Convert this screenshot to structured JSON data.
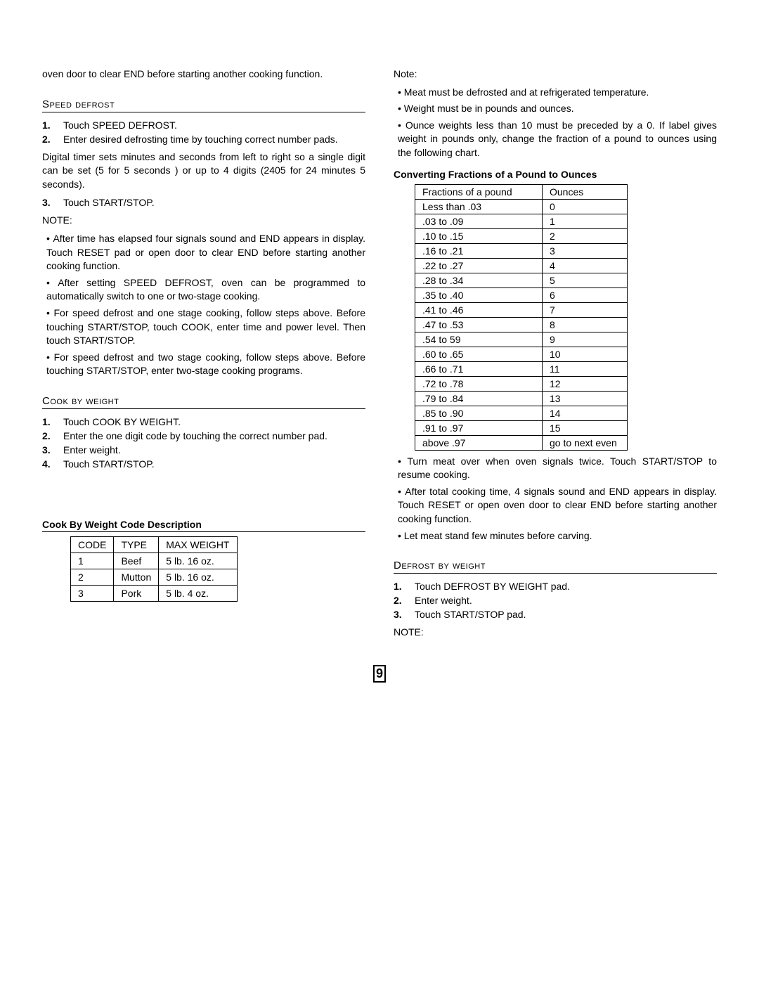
{
  "left": {
    "intro": "oven door to clear END before starting another cooking function.",
    "speed_defrost_title": "Speed defrost",
    "sd_steps": [
      "Touch SPEED DEFROST.",
      "Enter desired defrosting time by touching correct number pads.",
      "Touch START/STOP."
    ],
    "sd_mid": "Digital timer sets minutes and seconds from left to right so a single digit can be set (5 for 5 seconds ) or up to 4 digits (2405 for 24 minutes 5 seconds).",
    "note_label": "NOTE:",
    "sd_notes": [
      "After time has elapsed four signals sound and END appears in display. Touch RESET pad or open door to clear END before starting another cooking function.",
      "After setting SPEED DEFROST, oven can be programmed to automatically switch to one or two-stage cooking.",
      "For speed defrost and one stage cooking, follow steps above. Before touching START/STOP, touch COOK, enter time and power level. Then touch START/STOP.",
      "For speed defrost and two stage cooking, follow steps above. Before touching START/STOP, enter two-stage cooking programs."
    ],
    "cbw_title": "Cook by weight",
    "cbw_steps": [
      "Touch COOK BY WEIGHT.",
      "Enter the one digit code by touching the correct number pad.",
      "Enter weight.",
      "Touch START/STOP."
    ],
    "cbw_code_title": "Cook By Weight Code Description",
    "cbw_headers": [
      "CODE",
      "TYPE",
      "MAX WEIGHT"
    ],
    "cbw_rows": [
      [
        "1",
        "Beef",
        "5 lb. 16 oz."
      ],
      [
        "2",
        "Mutton",
        "5 lb. 16 oz."
      ],
      [
        "3",
        "Pork",
        "5 lb. 4 oz."
      ]
    ]
  },
  "right": {
    "note_label": "Note:",
    "notes_top": [
      "Meat must be defrosted and at refrigerated temperature.",
      "Weight must be in pounds and ounces.",
      "Ounce weights less than 10 must be preceded by a 0. If label gives weight in pounds only, change the fraction of a pound to ounces using the following chart."
    ],
    "conv_title": "Converting Fractions of a Pound to Ounces",
    "conv_headers": [
      "Fractions of a pound",
      "Ounces"
    ],
    "conv_rows": [
      [
        "Less than .03",
        "0"
      ],
      [
        ".03 to .09",
        "1"
      ],
      [
        ".10 to .15",
        "2"
      ],
      [
        ".16 to .21",
        "3"
      ],
      [
        ".22 to .27",
        "4"
      ],
      [
        ".28 to .34",
        "5"
      ],
      [
        ".35 to .40",
        "6"
      ],
      [
        ".41 to .46",
        "7"
      ],
      [
        ".47 to .53",
        "8"
      ],
      [
        ".54 to 59",
        "9"
      ],
      [
        ".60 to .65",
        "10"
      ],
      [
        ".66 to .71",
        "11"
      ],
      [
        ".72 to .78",
        "12"
      ],
      [
        ".79 to .84",
        "13"
      ],
      [
        ".85 to .90",
        "14"
      ],
      [
        ".91 to .97",
        "15"
      ],
      [
        "above .97",
        "go to next even"
      ]
    ],
    "notes_after": [
      "Turn meat over when oven signals twice. Touch START/STOP to resume cooking.",
      "After total cooking time, 4 signals sound and END appears in display. Touch RESET or open oven door to clear END before starting another cooking function.",
      "Let meat stand few minutes before carving."
    ],
    "dbw_title": "Defrost by weight",
    "dbw_steps": [
      "Touch DEFROST BY WEIGHT pad.",
      "Enter weight.",
      "Touch START/STOP pad."
    ],
    "dbw_note": "NOTE:"
  },
  "page_number": "9"
}
